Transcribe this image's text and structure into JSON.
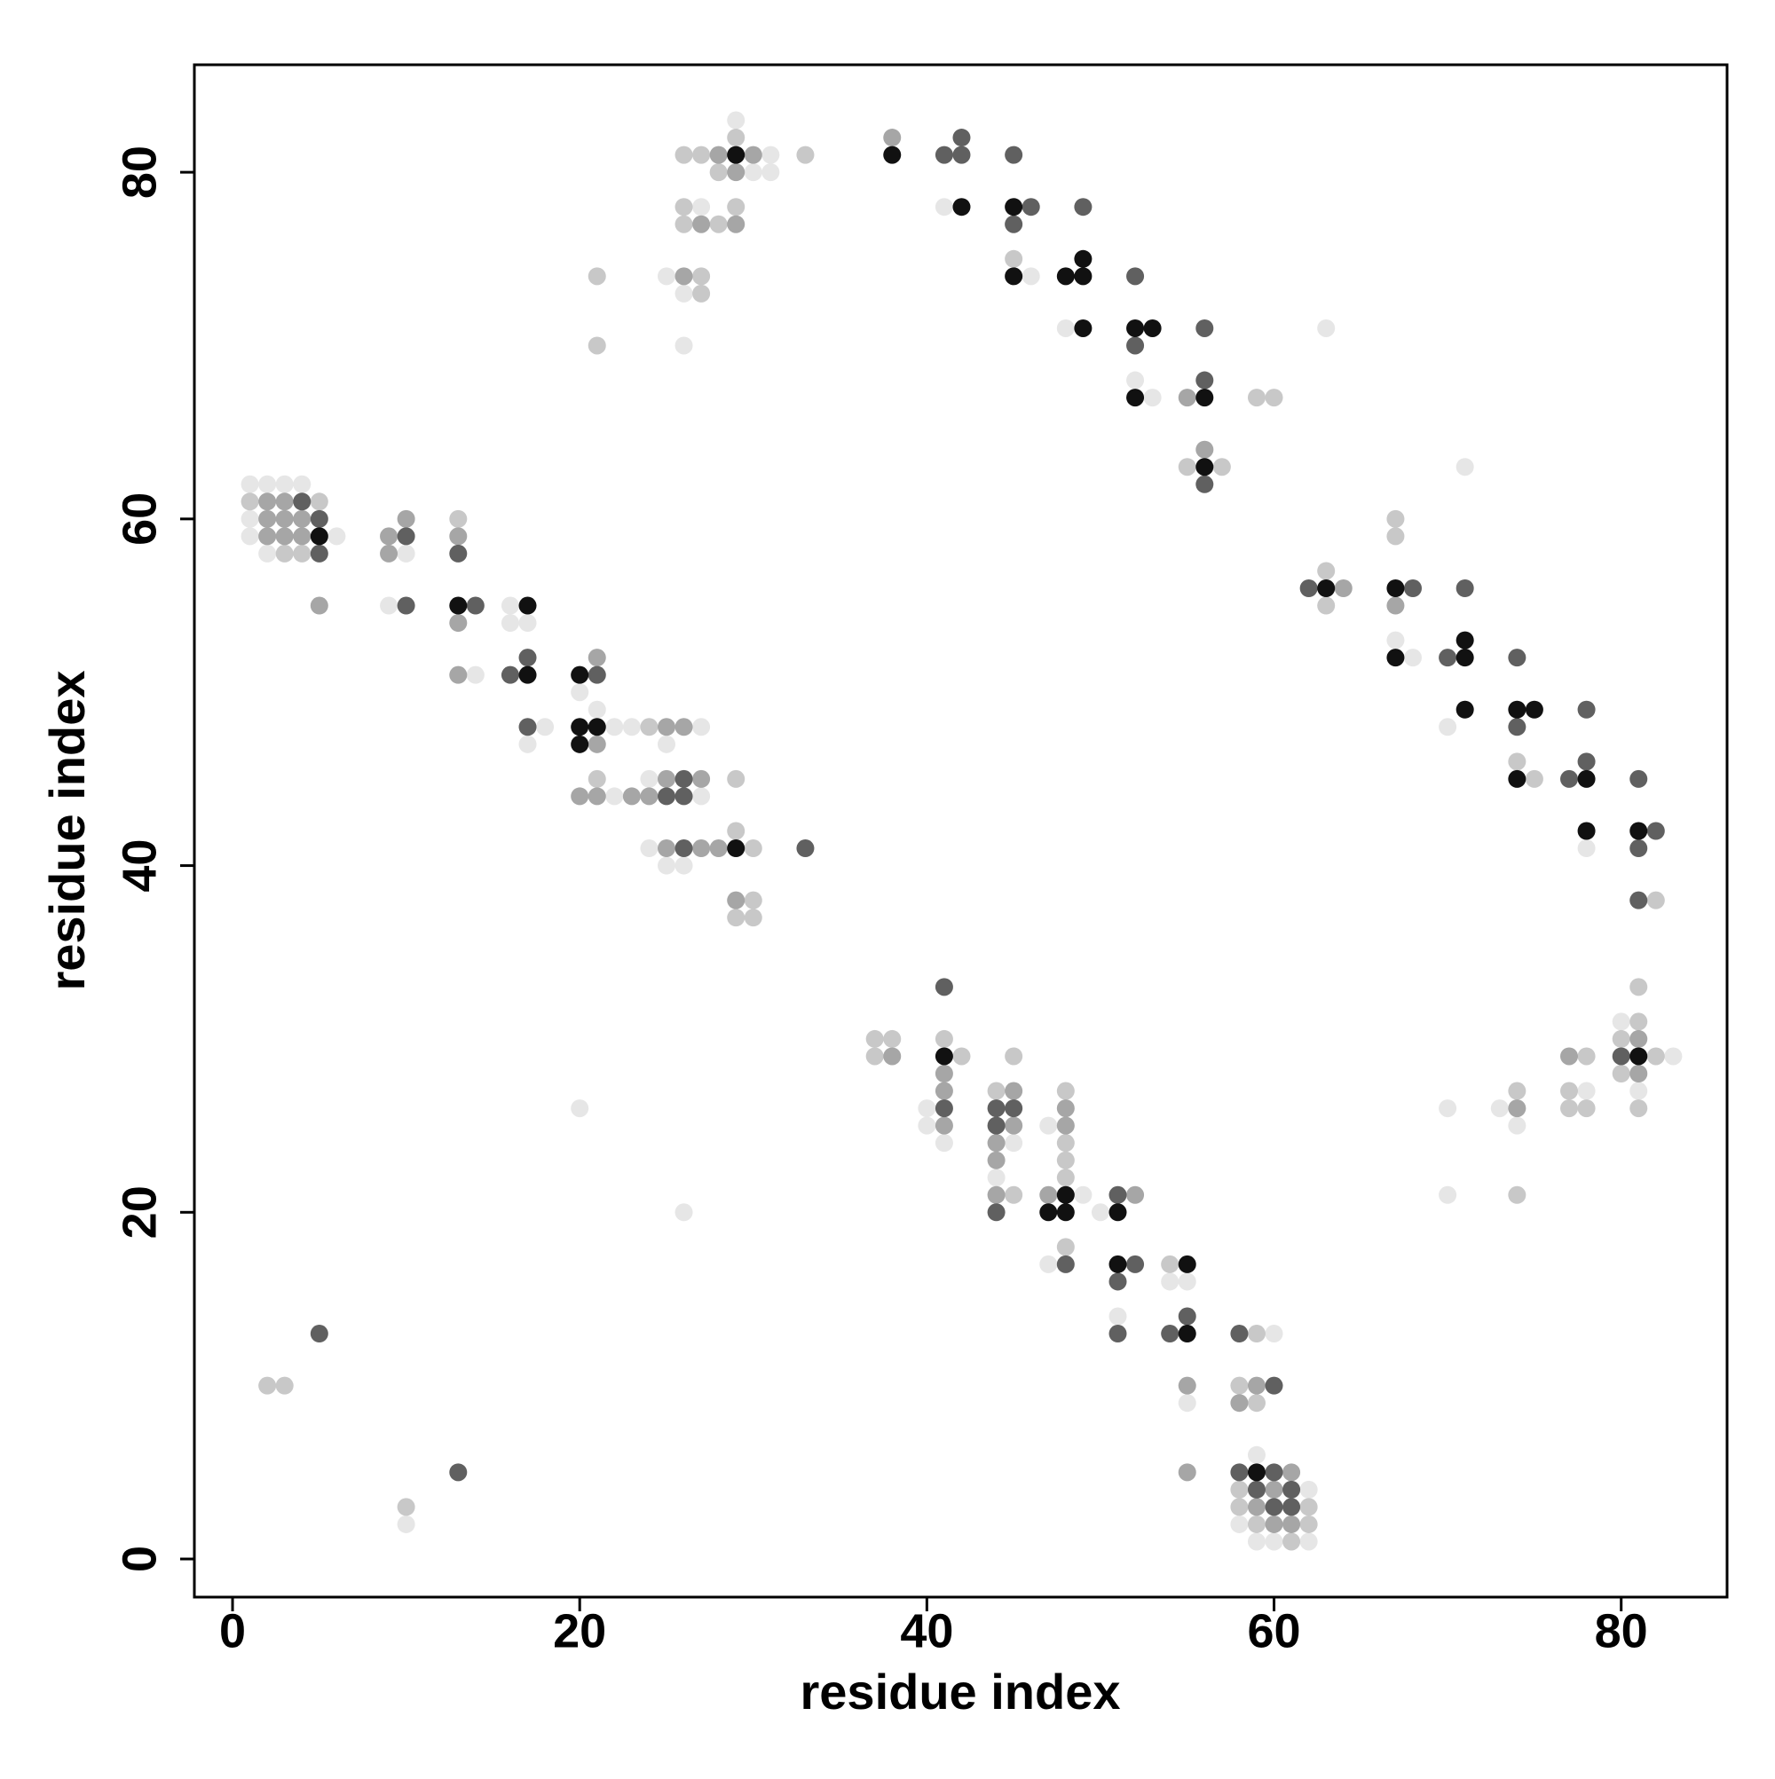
{
  "chart_data": {
    "type": "scatter",
    "x_label": "residue index",
    "y_label": "residue index",
    "xlim": [
      -2.2,
      86.1
    ],
    "ylim": [
      -2.2,
      86.2
    ],
    "xticks": [
      0,
      20,
      40,
      60,
      80
    ],
    "yticks": [
      0,
      20,
      40,
      60,
      80
    ],
    "series": [
      {
        "color": "#e6e6e6",
        "x": [
          1,
          2,
          3,
          4,
          1,
          1,
          2,
          6,
          10,
          9,
          14,
          16,
          16,
          17,
          18,
          17,
          20,
          21,
          22,
          23,
          27,
          25,
          24,
          22,
          27,
          24,
          25,
          26,
          29,
          31,
          30,
          31,
          27,
          25,
          26,
          26,
          41,
          46,
          48,
          52,
          53,
          63,
          67,
          68,
          70,
          71,
          78,
          80,
          83,
          81,
          78,
          73,
          74,
          70,
          70,
          40,
          40,
          41,
          45,
          44,
          47,
          49,
          50,
          47,
          51,
          54,
          55,
          55,
          60,
          59,
          62,
          58,
          59,
          60,
          62,
          20,
          26,
          10
        ],
        "values": [
          62,
          62,
          62,
          62,
          60,
          59,
          58,
          59,
          58,
          55,
          51,
          55,
          54,
          54,
          48,
          47,
          50,
          49,
          48,
          48,
          48,
          47,
          45,
          44,
          44,
          41,
          40,
          40,
          83,
          81,
          80,
          80,
          78,
          74,
          73,
          70,
          78,
          74,
          71,
          68,
          67,
          71,
          53,
          52,
          48,
          63,
          41,
          31,
          29,
          27,
          27,
          26,
          25,
          26,
          21,
          26,
          25,
          24,
          24,
          22,
          25,
          21,
          20,
          17,
          14,
          16,
          16,
          9,
          13,
          6,
          4,
          2,
          1,
          1,
          1,
          26,
          20,
          2
        ]
      },
      {
        "color": "#c8c8c8",
        "x": [
          1,
          5,
          3,
          4,
          13,
          21,
          29,
          29,
          30,
          30,
          29,
          30,
          24,
          29,
          26,
          27,
          33,
          28,
          26,
          29,
          26,
          28,
          21,
          27,
          27,
          21,
          45,
          55,
          57,
          59,
          60,
          63,
          63,
          67,
          67,
          74,
          75,
          82,
          81,
          81,
          80,
          82,
          80,
          81,
          78,
          77,
          77,
          78,
          74,
          74,
          37,
          38,
          37,
          41,
          42,
          44,
          45,
          45,
          48,
          48,
          48,
          48,
          48,
          54,
          59,
          58,
          59,
          58,
          58,
          62,
          59,
          62,
          61,
          2,
          3,
          10
        ],
        "values": [
          61,
          61,
          58,
          58,
          60,
          45,
          45,
          42,
          41,
          38,
          37,
          37,
          48,
          82,
          81,
          81,
          81,
          80,
          78,
          78,
          77,
          77,
          74,
          74,
          73,
          70,
          75,
          63,
          63,
          67,
          67,
          57,
          55,
          60,
          59,
          46,
          45,
          38,
          33,
          31,
          30,
          29,
          28,
          26,
          29,
          27,
          26,
          26,
          27,
          21,
          30,
          30,
          29,
          30,
          29,
          27,
          21,
          29,
          27,
          24,
          23,
          22,
          18,
          17,
          13,
          10,
          9,
          4,
          3,
          3,
          2,
          2,
          1,
          10,
          10,
          3
        ]
      },
      {
        "color": "#a6a6a6",
        "x": [
          2,
          3,
          2,
          3,
          4,
          2,
          3,
          4,
          5,
          9,
          10,
          9,
          13,
          13,
          13,
          21,
          21,
          25,
          26,
          25,
          27,
          20,
          21,
          23,
          24,
          25,
          27,
          28,
          29,
          28,
          30,
          29,
          27,
          29,
          26,
          38,
          55,
          56,
          64,
          67,
          81,
          81,
          77,
          74,
          38,
          41,
          41,
          41,
          45,
          45,
          44,
          44,
          44,
          48,
          48,
          47,
          52,
          55,
          55,
          59,
          58,
          61,
          60,
          59,
          60,
          61
        ],
        "values": [
          61,
          61,
          60,
          60,
          60,
          59,
          59,
          59,
          55,
          59,
          60,
          58,
          59,
          54,
          51,
          52,
          47,
          48,
          48,
          45,
          45,
          44,
          44,
          44,
          44,
          41,
          41,
          41,
          38,
          81,
          81,
          80,
          77,
          77,
          74,
          82,
          67,
          64,
          56,
          55,
          30,
          28,
          29,
          26,
          29,
          28,
          27,
          25,
          27,
          25,
          24,
          23,
          21,
          26,
          25,
          21,
          21,
          10,
          5,
          10,
          9,
          5,
          4,
          3,
          2,
          2
        ]
      },
      {
        "color": "#606060",
        "x": [
          4,
          5,
          5,
          10,
          10,
          13,
          14,
          16,
          17,
          17,
          21,
          26,
          25,
          26,
          26,
          33,
          41,
          42,
          42,
          45,
          46,
          45,
          49,
          52,
          52,
          56,
          56,
          56,
          62,
          68,
          71,
          70,
          74,
          74,
          78,
          78,
          77,
          81,
          82,
          81,
          81,
          80,
          41,
          41,
          44,
          45,
          44,
          44,
          48,
          51,
          52,
          51,
          51,
          55,
          54,
          58,
          60,
          58,
          60,
          59,
          61,
          60,
          61,
          5,
          13
        ],
        "values": [
          61,
          60,
          58,
          59,
          55,
          58,
          55,
          51,
          52,
          48,
          51,
          45,
          44,
          44,
          41,
          41,
          81,
          82,
          81,
          81,
          78,
          77,
          78,
          74,
          70,
          71,
          68,
          62,
          56,
          56,
          56,
          52,
          52,
          48,
          49,
          46,
          45,
          45,
          42,
          41,
          38,
          29,
          33,
          26,
          26,
          26,
          25,
          20,
          17,
          21,
          17,
          16,
          13,
          14,
          13,
          13,
          10,
          5,
          5,
          4,
          4,
          3,
          3,
          13,
          5
        ]
      },
      {
        "color": "#111111",
        "x": [
          5,
          13,
          17,
          17,
          20,
          20,
          21,
          20,
          29,
          29,
          38,
          42,
          45,
          45,
          49,
          48,
          49,
          49,
          52,
          53,
          52,
          56,
          56,
          63,
          67,
          67,
          71,
          71,
          71,
          74,
          75,
          74,
          78,
          78,
          81,
          81,
          41,
          48,
          47,
          48,
          51,
          51,
          55,
          55,
          59
        ],
        "values": [
          59,
          55,
          55,
          51,
          51,
          48,
          48,
          47,
          41,
          81,
          81,
          78,
          78,
          74,
          75,
          74,
          74,
          71,
          71,
          71,
          67,
          67,
          63,
          56,
          56,
          52,
          53,
          52,
          49,
          49,
          49,
          45,
          45,
          42,
          42,
          29,
          29,
          21,
          20,
          20,
          20,
          17,
          17,
          13,
          5
        ]
      }
    ]
  }
}
